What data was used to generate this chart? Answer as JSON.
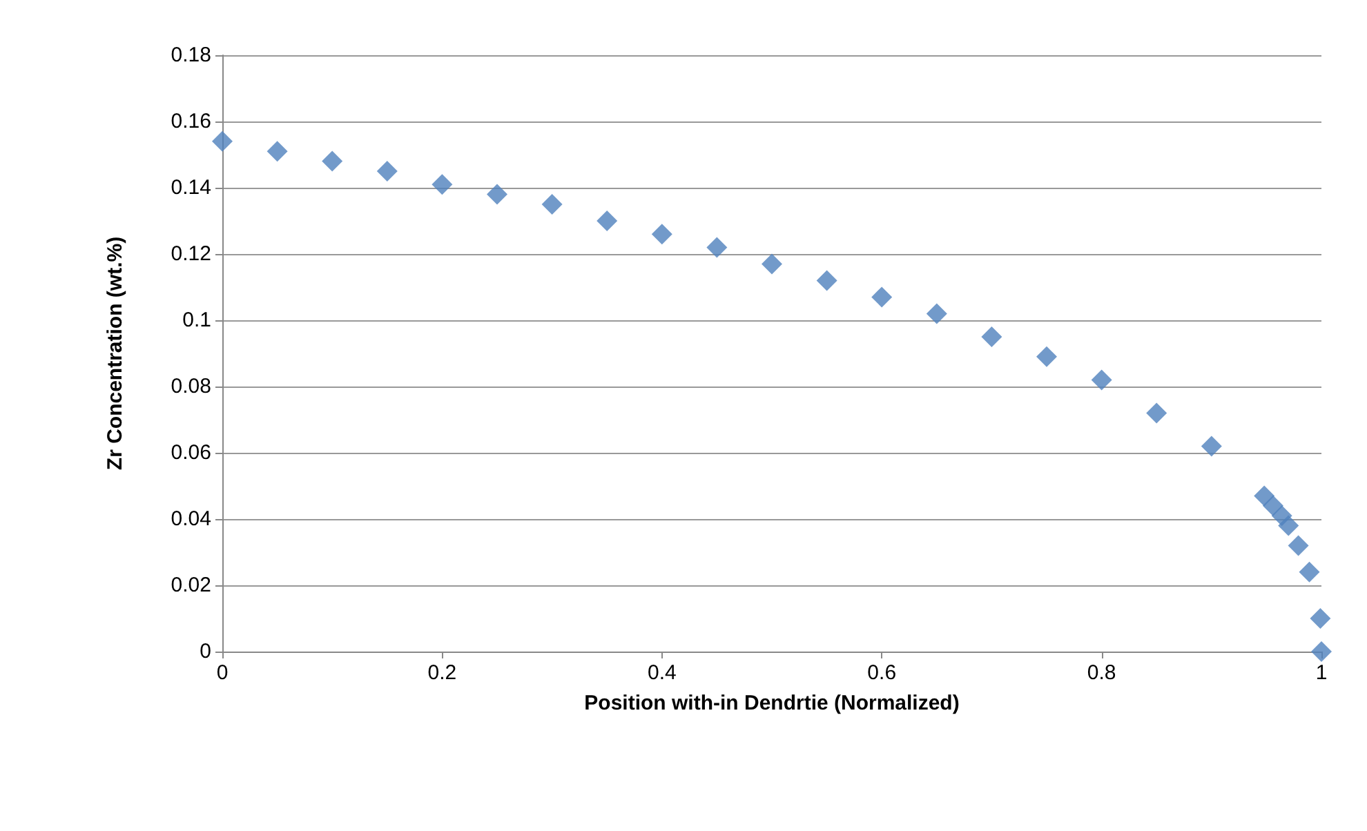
{
  "chart_data": {
    "type": "scatter",
    "xlabel": "Position with-in Dendrtie (Normalized)",
    "ylabel": "Zr Concentration (wt.%)",
    "marker": "diamond",
    "grid": "y",
    "xlim": [
      0,
      1
    ],
    "xticks": [
      0,
      0.2,
      0.4,
      0.6,
      0.8,
      1
    ],
    "ylim": [
      0,
      0.18
    ],
    "yticks": [
      0,
      0.02,
      0.04,
      0.06,
      0.08,
      0.1,
      0.12,
      0.14,
      0.16,
      0.18
    ],
    "series": [
      {
        "color": "#4f81bd",
        "x": [
          0,
          0.05,
          0.1,
          0.15,
          0.2,
          0.25,
          0.3,
          0.35,
          0.4,
          0.45,
          0.5,
          0.55,
          0.6,
          0.65,
          0.7,
          0.75,
          0.8,
          0.85,
          0.9,
          0.948,
          0.956,
          0.964,
          0.97,
          0.979,
          0.989,
          0.999,
          1
        ],
        "values": [
          0.154,
          0.151,
          0.148,
          0.145,
          0.141,
          0.138,
          0.135,
          0.13,
          0.126,
          0.122,
          0.117,
          0.112,
          0.107,
          0.102,
          0.095,
          0.089,
          0.082,
          0.072,
          0.062,
          0.047,
          0.044,
          0.041,
          0.038,
          0.032,
          0.024,
          0.01,
          0
        ]
      }
    ]
  }
}
